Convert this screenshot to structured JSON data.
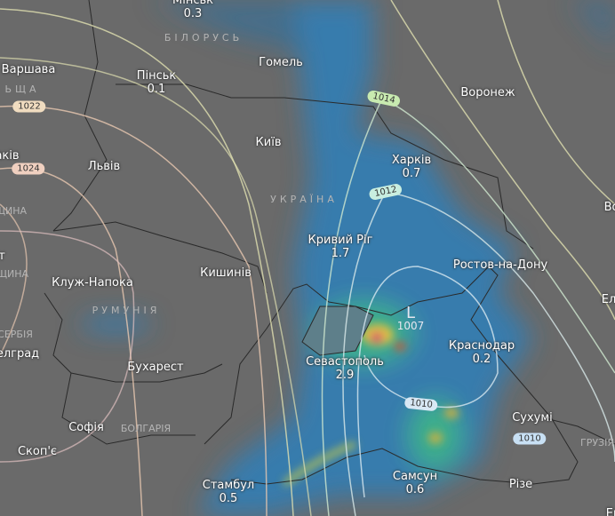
{
  "cities": [
    {
      "name": "Мінськ",
      "value": "0.3"
    },
    {
      "name": "Гомель"
    },
    {
      "name": "Варшава"
    },
    {
      "name": "Пінськ",
      "value": "0.1"
    },
    {
      "name": "Київ"
    },
    {
      "name": "Харків",
      "value": "0.7"
    },
    {
      "name": "Воронеж"
    },
    {
      "name": "Львів"
    },
    {
      "name": "Кривий Ріг",
      "value": "1.7"
    },
    {
      "name": "Ростов-на-Дону"
    },
    {
      "name": "Кишинів"
    },
    {
      "name": "Клуж-Напока"
    },
    {
      "name": "Севастополь",
      "value": "2.9"
    },
    {
      "name": "Краснодар",
      "value": "0.2"
    },
    {
      "name": "Бухарест"
    },
    {
      "name": "Сухумі"
    },
    {
      "name": "Софія"
    },
    {
      "name": "Скоп'є"
    },
    {
      "name": "Самсун",
      "value": "0.6"
    },
    {
      "name": "Стамбул",
      "value": "0.5"
    },
    {
      "name": "Різе"
    },
    {
      "name": "акiв"
    },
    {
      "name": "елград"
    },
    {
      "name": "т"
    },
    {
      "name": "Во"
    },
    {
      "name": "Ел"
    },
    {
      "name": "Ер"
    }
  ],
  "countries": [
    "БІЛОРУСЬ",
    "ЬЩА",
    "УКРАЇНА",
    "РУМУНІЯ",
    "СЕРБІЯ",
    "БОЛГАРІЯ",
    "ГРУЗІЯ",
    "ЩИНА",
    "ЩИНА"
  ],
  "isobars": [
    "1022",
    "1024",
    "1014",
    "1012",
    "1010",
    "1010"
  ],
  "low": {
    "symbol": "L",
    "pressure": "1007"
  },
  "colors": {
    "land": "#6a6a6a",
    "precip_light": "#2f7fb8",
    "precip_mid": "#3cb08a",
    "precip_heavy": "#d23c6e",
    "isobar_high": "#e8c8b0",
    "isobar_low": "#cfe8d0"
  }
}
